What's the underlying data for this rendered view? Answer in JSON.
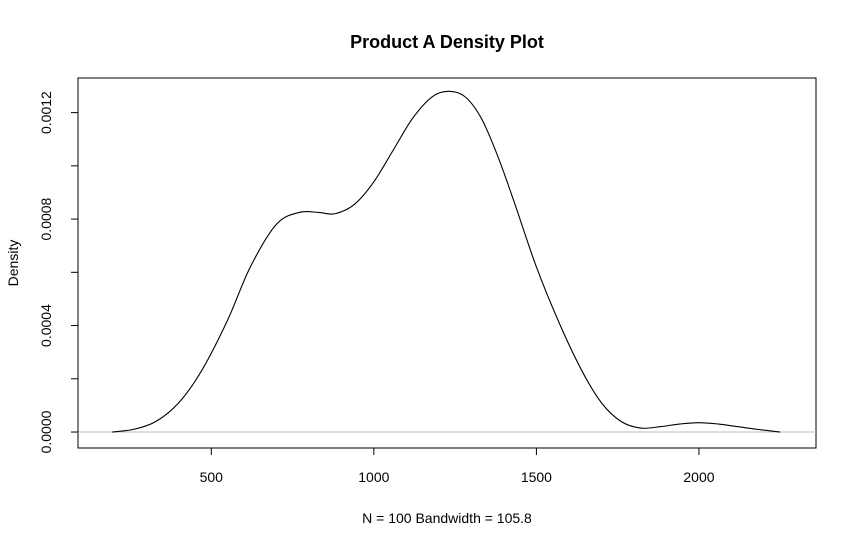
{
  "chart_data": {
    "type": "line",
    "title": "Product A Density Plot",
    "xlabel": "N = 100   Bandwidth = 105.8",
    "ylabel": "Density",
    "xlim": [
      90,
      2360
    ],
    "ylim": [
      -6e-05,
      0.00133
    ],
    "x_ticks": [
      500,
      1000,
      1500,
      2000
    ],
    "x_tick_labels": [
      "500",
      "1000",
      "1500",
      "2000"
    ],
    "y_ticks": [
      0,
      0.0002,
      0.0004,
      0.0006,
      0.0008,
      0.001,
      0.0012
    ],
    "y_tick_labels": [
      "0.0000",
      "",
      "0.0004",
      "",
      "0.0008",
      "",
      "0.0012"
    ],
    "zero_line_color": "#bebebe",
    "line_color": "#000000",
    "grid": false,
    "series": [
      {
        "name": "",
        "x": [
          195,
          260,
          330,
          400,
          470,
          550,
          620,
          700,
          770,
          830,
          880,
          940,
          1000,
          1060,
          1120,
          1180,
          1230,
          1280,
          1330,
          1380,
          1430,
          1500,
          1570,
          1640,
          1700,
          1760,
          1820,
          1880,
          1940,
          2000,
          2060,
          2120,
          2180,
          2250
        ],
        "y": [
          0.0,
          1e-05,
          4e-05,
          0.00011,
          0.00023,
          0.00042,
          0.00062,
          0.00078,
          0.000825,
          0.000825,
          0.00082,
          0.000855,
          0.00094,
          0.00106,
          0.00118,
          0.00126,
          0.00128,
          0.00126,
          0.00118,
          0.00104,
          0.00087,
          0.00062,
          0.00041,
          0.00023,
          0.00011,
          4e-05,
          1.5e-05,
          2e-05,
          3e-05,
          3.5e-05,
          3e-05,
          2e-05,
          1e-05,
          0.0
        ]
      }
    ]
  }
}
